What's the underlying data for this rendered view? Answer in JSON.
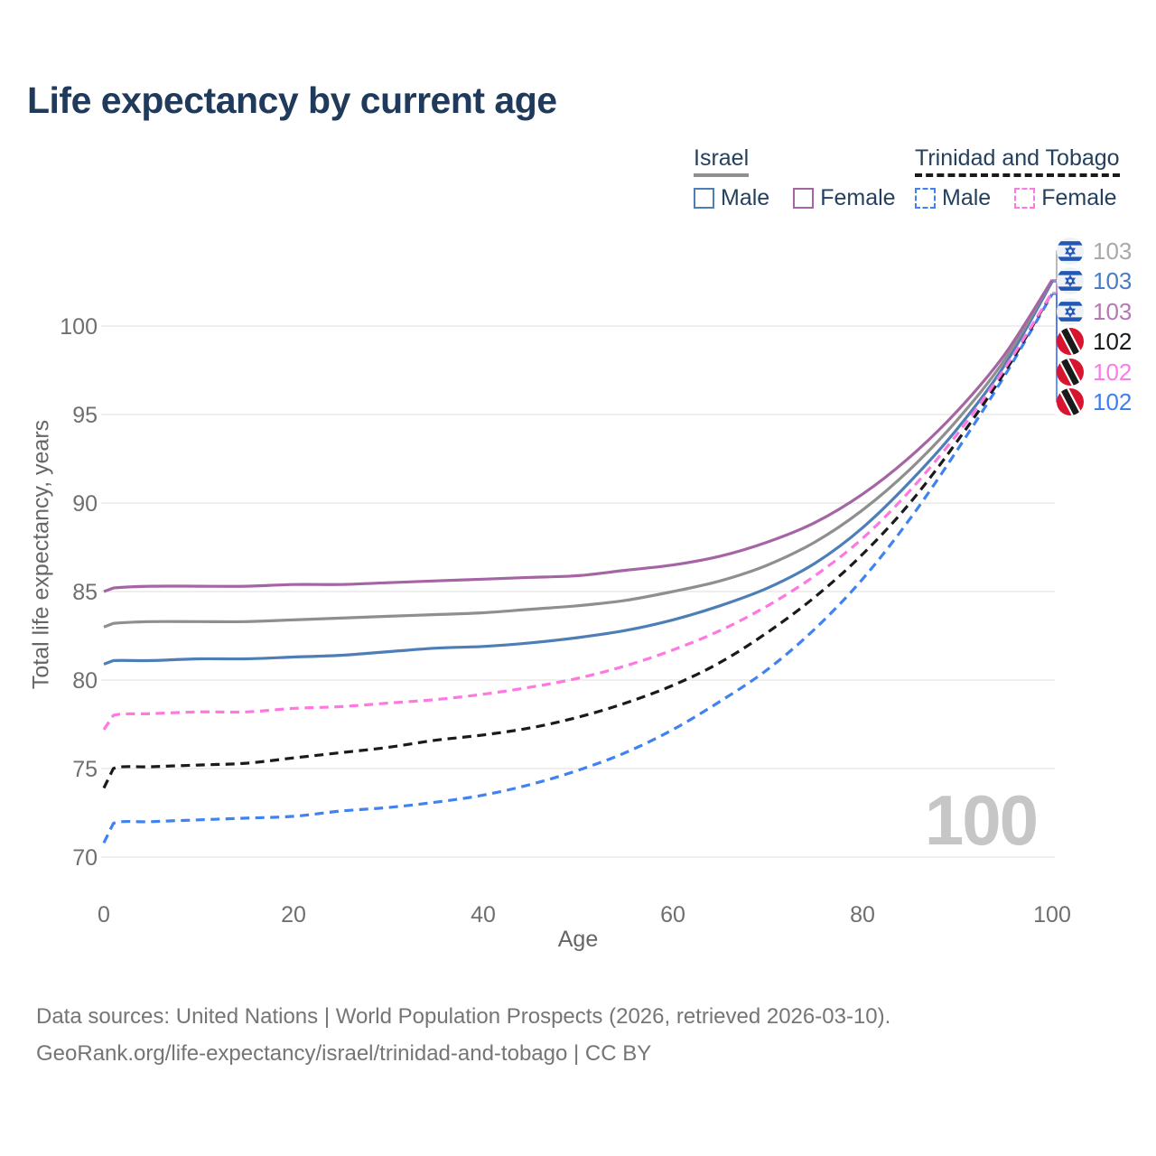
{
  "title": "Life expectancy by current age",
  "watermark": "100",
  "legend": {
    "israel": {
      "title": "Israel",
      "items": [
        {
          "label": "Male",
          "series": "israel_male"
        },
        {
          "label": "Female",
          "series": "israel_female"
        }
      ]
    },
    "trinidad_and_tobago": {
      "title": "Trinidad and Tobago",
      "items": [
        {
          "label": "Male",
          "series": "tt_male"
        },
        {
          "label": "Female",
          "series": "tt_female"
        }
      ]
    }
  },
  "end_labels": [
    {
      "flag": "israel",
      "series": "israel_both",
      "value": "103",
      "color": "#a9a9a9"
    },
    {
      "flag": "israel",
      "series": "israel_male",
      "value": "103",
      "color": "#4a7bc4"
    },
    {
      "flag": "israel",
      "series": "israel_female",
      "value": "103",
      "color": "#b578b5"
    },
    {
      "flag": "trinidad_and_tobago",
      "series": "tt_both",
      "value": "102",
      "color": "#1a1a1a"
    },
    {
      "flag": "trinidad_and_tobago",
      "series": "tt_female",
      "value": "102",
      "color": "#fb7ce8"
    },
    {
      "flag": "trinidad_and_tobago",
      "series": "tt_male",
      "value": "102",
      "color": "#3d7ef0"
    }
  ],
  "footer": {
    "line1": "Data sources: United Nations | World Population Prospects (2026, retrieved 2026-03-10).",
    "line2": "GeoRank.org/life-expectancy/israel/trinidad-and-tobago | CC BY"
  },
  "colors": {
    "title_text": "#203a5c",
    "legend_text": "#24405f",
    "axis_text": "#6f6f6f",
    "axis_title_text": "#666666",
    "grid": "#e9e9e9",
    "watermark": "#c6c6c6",
    "footer_text": "#757575",
    "israel_flag_blue": "#2257b5",
    "israel_flag_bg": "#eef1f6",
    "tt_flag_red": "#d8142f",
    "tt_flag_black": "#1a1a1a"
  },
  "chart_data": {
    "type": "line",
    "title": "Life expectancy by current age",
    "xlabel": "Age",
    "ylabel": "Total life expectancy, years",
    "x_ticks": [
      0,
      20,
      40,
      60,
      80,
      100
    ],
    "y_ticks": [
      70,
      75,
      80,
      85,
      90,
      95,
      100
    ],
    "xlim": [
      0,
      100
    ],
    "ylim": [
      70,
      100
    ],
    "grid": "horizontal-only",
    "legend_position": "top-right",
    "x": [
      0,
      1,
      5,
      10,
      15,
      20,
      25,
      30,
      35,
      40,
      45,
      50,
      55,
      60,
      65,
      70,
      75,
      80,
      85,
      90,
      95,
      100
    ],
    "series": [
      {
        "key": "israel_male",
        "name": "Israel Male",
        "color": "#4d7eb6",
        "dash": false,
        "values": [
          80.9,
          81.1,
          81.1,
          81.2,
          81.2,
          81.3,
          81.4,
          81.6,
          81.8,
          81.9,
          82.1,
          82.4,
          82.8,
          83.4,
          84.2,
          85.2,
          86.6,
          88.6,
          91.2,
          94.2,
          97.8,
          102.5
        ]
      },
      {
        "key": "israel_both",
        "name": "Israel",
        "color": "#8f8f8f",
        "dash": false,
        "values": [
          83.0,
          83.2,
          83.3,
          83.3,
          83.3,
          83.4,
          83.5,
          83.6,
          83.7,
          83.8,
          84.0,
          84.2,
          84.5,
          85.0,
          85.6,
          86.5,
          87.8,
          89.6,
          91.9,
          94.7,
          98.1,
          102.6
        ]
      },
      {
        "key": "israel_female",
        "name": "Israel Female",
        "color": "#a565a5",
        "dash": false,
        "values": [
          85.0,
          85.2,
          85.3,
          85.3,
          85.3,
          85.4,
          85.4,
          85.5,
          85.6,
          85.7,
          85.8,
          85.9,
          86.2,
          86.5,
          87.0,
          87.8,
          88.9,
          90.5,
          92.6,
          95.2,
          98.4,
          102.6
        ]
      },
      {
        "key": "tt_male",
        "name": "Trinidad and Tobago Male",
        "color": "#3f82f0",
        "dash": true,
        "values": [
          70.8,
          71.9,
          72.0,
          72.1,
          72.2,
          72.3,
          72.6,
          72.8,
          73.1,
          73.5,
          74.1,
          74.9,
          75.9,
          77.2,
          78.8,
          80.6,
          82.9,
          85.7,
          89.1,
          93.0,
          97.2,
          101.8
        ]
      },
      {
        "key": "tt_both",
        "name": "Trinidad and Tobago",
        "color": "#1a1a1a",
        "dash": true,
        "values": [
          73.9,
          75.0,
          75.1,
          75.2,
          75.3,
          75.6,
          75.9,
          76.2,
          76.6,
          76.9,
          77.3,
          77.9,
          78.7,
          79.7,
          81.0,
          82.7,
          84.7,
          87.1,
          90.0,
          93.5,
          97.4,
          101.9
        ]
      },
      {
        "key": "tt_female",
        "name": "Trinidad and Tobago Female",
        "color": "#ff77e0",
        "dash": true,
        "values": [
          77.2,
          78.0,
          78.1,
          78.2,
          78.2,
          78.4,
          78.5,
          78.7,
          78.9,
          79.2,
          79.6,
          80.1,
          80.8,
          81.7,
          82.8,
          84.2,
          85.9,
          88.0,
          90.7,
          93.9,
          97.6,
          101.9
        ]
      }
    ]
  }
}
